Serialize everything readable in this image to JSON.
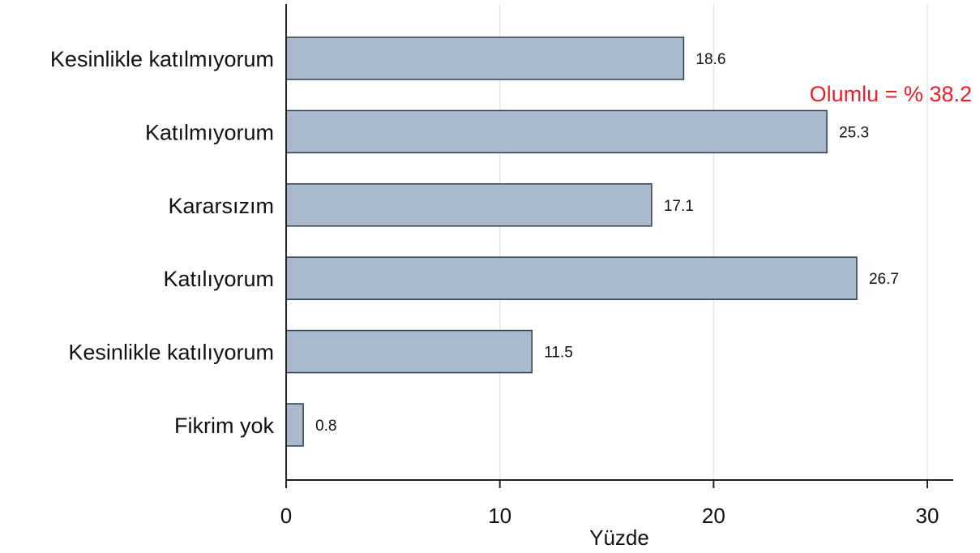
{
  "chart_data": {
    "type": "bar",
    "orientation": "horizontal",
    "title": "",
    "xlabel": "Yüzde",
    "ylabel": "",
    "categories": [
      "Kesinlikle katılmıyorum",
      "Katılmıyorum",
      "Kararsızım",
      "Katılıyorum",
      "Kesinlikle katılıyorum",
      "Fikrim yok"
    ],
    "values": [
      18.6,
      25.3,
      17.1,
      26.7,
      11.5,
      0.8
    ],
    "value_labels": [
      "18.6",
      "25.3",
      "17.1",
      "26.7",
      "11.5",
      "0.8"
    ],
    "xlim": [
      0,
      30
    ],
    "xticks": [
      0,
      10,
      20,
      30
    ],
    "xtick_labels": [
      "0",
      "10",
      "20",
      "30"
    ],
    "grid": "vertical",
    "legend": "none",
    "annotation": {
      "text": "Olumlu = % 38.2",
      "color": "#e8202a"
    },
    "colors": {
      "bar_fill": "#aab9cc",
      "bar_stroke": "#2f3e4f",
      "axis": "#222222",
      "grid": "#e6e6e6"
    }
  }
}
